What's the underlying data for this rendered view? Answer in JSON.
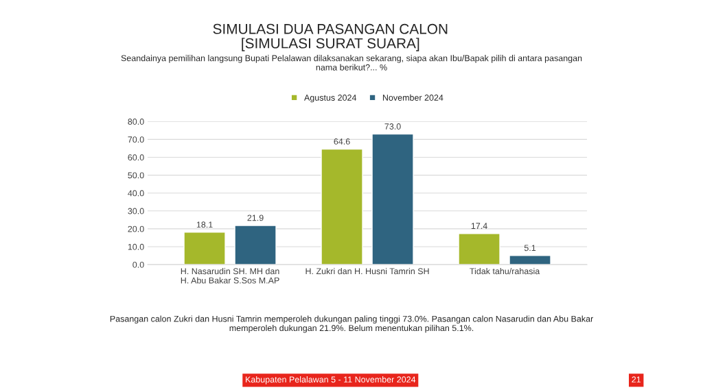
{
  "chart_data": {
    "type": "bar",
    "title": "SIMULASI DUA PASANGAN CALON\n[SIMULASI SURAT SUARA]",
    "subtitle": "Seandainya pemilihan langsung Bupati Pelalawan dilaksanakan sekarang, siapa akan Ibu/Bapak pilih di antara pasangan\nnama berikut?... %",
    "categories": [
      "H. Nasarudin SH. MH dan\nH. Abu Bakar S.Sos M.AP",
      "H. Zukri dan H. Husni Tamrin SH",
      "Tidak tahu/rahasia"
    ],
    "series": [
      {
        "name": "Agustus 2024",
        "color": "#a5b82b",
        "values": [
          18.1,
          64.6,
          17.4
        ],
        "value_labels": [
          "18.1",
          "64.6",
          "17.4"
        ]
      },
      {
        "name": "November 2024",
        "color": "#2f6480",
        "values": [
          21.9,
          73.0,
          5.1
        ],
        "value_labels": [
          "21.9",
          "73.0",
          "5.1"
        ]
      }
    ],
    "ylim": [
      0,
      80
    ],
    "yticks": [
      {
        "value": 0,
        "label": "0.0"
      },
      {
        "value": 10,
        "label": "10.0"
      },
      {
        "value": 20,
        "label": "20.0"
      },
      {
        "value": 30,
        "label": "30.0"
      },
      {
        "value": 40,
        "label": "40.0"
      },
      {
        "value": 50,
        "label": "50.0"
      },
      {
        "value": 60,
        "label": "60.0"
      },
      {
        "value": 70,
        "label": "70.0"
      },
      {
        "value": 80,
        "label": "80.0"
      }
    ],
    "grid": "y",
    "legend": "top",
    "annotations": [
      "Pasangan calon Zukri dan Husni Tamrin memperoleh dukungan paling tinggi 73.0%. Pasangan calon Nasarudin dan Abu Bakar\nmemperoleh dukungan 21.9%. Belum menentukan pilihan 5.1%.",
      "Kabupaten Pelalawan 5 - 11 November 2024",
      "21"
    ]
  }
}
